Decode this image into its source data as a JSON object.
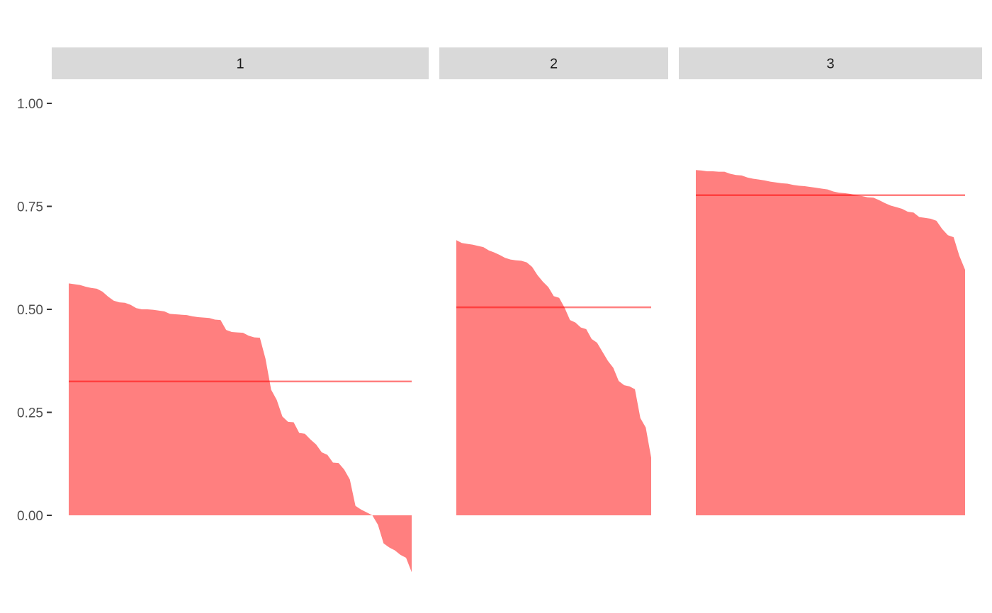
{
  "chart_data": {
    "type": "area",
    "facets": [
      "1",
      "2",
      "3"
    ],
    "ylim": [
      -0.14,
      1.0
    ],
    "yticks": [
      0.0,
      0.25,
      0.5,
      0.75,
      1.0
    ],
    "ytick_labels": [
      "0.00",
      "0.25",
      "0.50",
      "0.75",
      "1.00"
    ],
    "xlabel": "",
    "ylabel": "",
    "grid": false,
    "colors": {
      "area": "#ff0000",
      "area_opacity": 0.5,
      "mean_line": "#ff0000",
      "strip": "#d9d9d9",
      "axis_text": "#4d4d4d"
    },
    "panels": [
      {
        "label": "1",
        "mean": 0.325,
        "values": [
          0.563,
          0.561,
          0.559,
          0.555,
          0.552,
          0.55,
          0.543,
          0.531,
          0.521,
          0.517,
          0.516,
          0.511,
          0.503,
          0.5,
          0.5,
          0.499,
          0.497,
          0.495,
          0.489,
          0.488,
          0.487,
          0.486,
          0.483,
          0.481,
          0.48,
          0.479,
          0.475,
          0.474,
          0.45,
          0.445,
          0.444,
          0.443,
          0.436,
          0.432,
          0.431,
          0.38,
          0.305,
          0.28,
          0.24,
          0.227,
          0.226,
          0.2,
          0.198,
          0.184,
          0.172,
          0.153,
          0.147,
          0.128,
          0.127,
          0.111,
          0.087,
          0.023,
          0.014,
          0.007,
          0.0,
          -0.023,
          -0.068,
          -0.078,
          -0.085,
          -0.096,
          -0.103,
          -0.138
        ]
      },
      {
        "label": "2",
        "mean": 0.505,
        "values": [
          0.668,
          0.661,
          0.659,
          0.657,
          0.654,
          0.651,
          0.643,
          0.638,
          0.632,
          0.625,
          0.621,
          0.619,
          0.618,
          0.614,
          0.603,
          0.583,
          0.567,
          0.554,
          0.532,
          0.528,
          0.504,
          0.474,
          0.468,
          0.456,
          0.452,
          0.428,
          0.419,
          0.397,
          0.375,
          0.358,
          0.326,
          0.316,
          0.313,
          0.306,
          0.236,
          0.213,
          0.14
        ]
      },
      {
        "label": "3",
        "mean": 0.777,
        "values": [
          0.838,
          0.837,
          0.835,
          0.835,
          0.834,
          0.834,
          0.829,
          0.826,
          0.825,
          0.82,
          0.817,
          0.815,
          0.813,
          0.81,
          0.808,
          0.806,
          0.805,
          0.802,
          0.8,
          0.799,
          0.797,
          0.795,
          0.793,
          0.791,
          0.786,
          0.783,
          0.782,
          0.78,
          0.777,
          0.775,
          0.772,
          0.771,
          0.765,
          0.758,
          0.752,
          0.748,
          0.744,
          0.737,
          0.735,
          0.724,
          0.722,
          0.72,
          0.715,
          0.695,
          0.68,
          0.675,
          0.63,
          0.596
        ]
      }
    ]
  }
}
